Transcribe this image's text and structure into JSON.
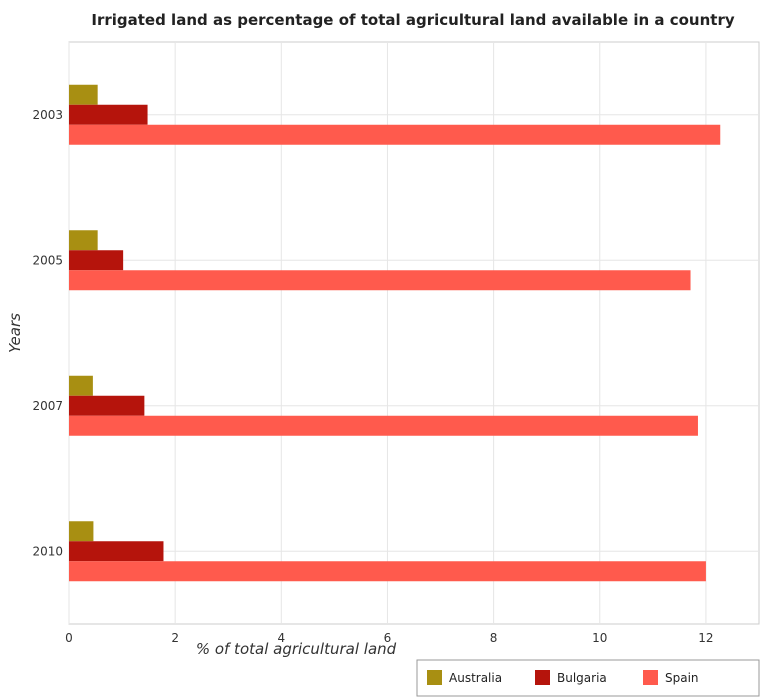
{
  "chart_data": {
    "type": "bar",
    "orientation": "horizontal",
    "title": "Irrigated land as percentage of total agricultural land available in a country",
    "xlabel": "% of total agricultural land",
    "ylabel": "Years",
    "categories": [
      "2003",
      "2005",
      "2007",
      "2010"
    ],
    "xlim": [
      0,
      13
    ],
    "xticks": [
      0,
      2,
      4,
      6,
      8,
      10,
      12
    ],
    "grid": true,
    "legend_position": "bottom-right",
    "series": [
      {
        "name": "Australia",
        "color": "#a88f12",
        "values": [
          0.54,
          0.54,
          0.45,
          0.46
        ]
      },
      {
        "name": "Bulgaria",
        "color": "#b5140c",
        "values": [
          1.48,
          1.02,
          1.42,
          1.78
        ]
      },
      {
        "name": "Spain",
        "color": "#ff5a4d",
        "values": [
          12.27,
          11.71,
          11.85,
          12.0
        ]
      }
    ]
  }
}
